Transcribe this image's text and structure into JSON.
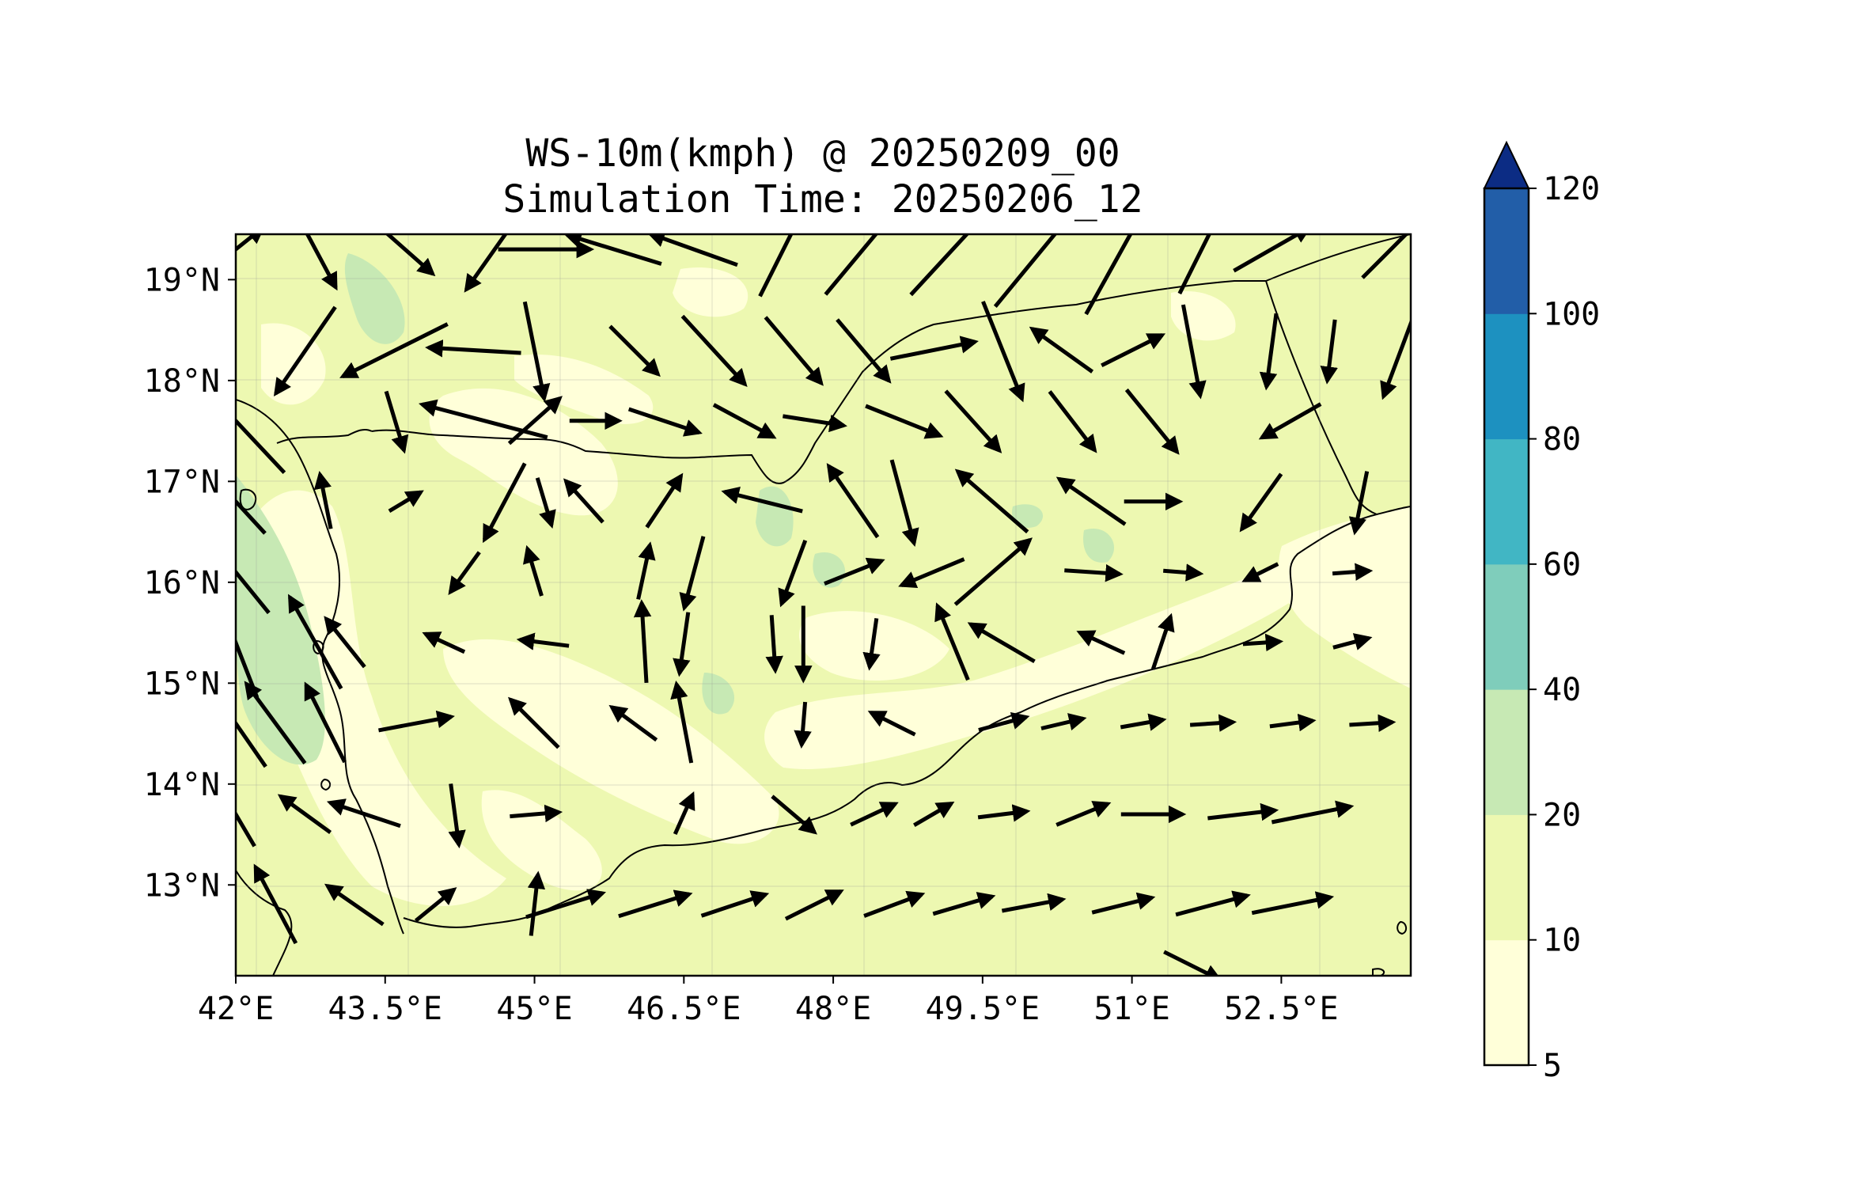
{
  "title_line1": "WS-10m(kmph) @ 20250209_00",
  "title_line2": "Simulation Time: 20250206_12",
  "map": {
    "lon_range": [
      42.0,
      53.8
    ],
    "lat_range": [
      12.1,
      19.45
    ],
    "lon_ticks": [
      {
        "v": 42.0,
        "label": "42°E"
      },
      {
        "v": 43.5,
        "label": "43.5°E"
      },
      {
        "v": 45.0,
        "label": "45°E"
      },
      {
        "v": 46.5,
        "label": "46.5°E"
      },
      {
        "v": 48.0,
        "label": "48°E"
      },
      {
        "v": 49.5,
        "label": "49.5°E"
      },
      {
        "v": 51.0,
        "label": "51°E"
      },
      {
        "v": 52.5,
        "label": "52.5°E"
      }
    ],
    "lat_ticks": [
      {
        "v": 19,
        "label": "19°N"
      },
      {
        "v": 18,
        "label": "18°N"
      },
      {
        "v": 17,
        "label": "17°N"
      },
      {
        "v": 16,
        "label": "16°N"
      },
      {
        "v": 15,
        "label": "15°N"
      },
      {
        "v": 14,
        "label": "14°N"
      },
      {
        "v": 13,
        "label": "13°N"
      }
    ]
  },
  "colorbar": {
    "levels": [
      {
        "label": "5"
      },
      {
        "label": "10"
      },
      {
        "label": "20"
      },
      {
        "label": "40"
      },
      {
        "label": "60"
      },
      {
        "label": "80"
      },
      {
        "label": "100"
      },
      {
        "label": "120"
      }
    ],
    "colors": [
      "#ffffd9",
      "#edf8b1",
      "#c7e9b4",
      "#7fcdbb",
      "#41b6c4",
      "#1d91c0",
      "#225ea8",
      "#0c2c84"
    ],
    "extend": "max"
  },
  "colors": {
    "fill_low": "#ffffd9",
    "fill_mid": "#edf8b1",
    "fill_high": "#c7e9b4",
    "arrow": "#000000",
    "coast": "#000000"
  },
  "wind_field": {
    "units": "data (lon/lat)",
    "rows": [
      {
        "lat": 19.3,
        "vectors": [
          [
            42.0,
            1.1,
            1.0,
            0.8
          ],
          [
            42.8,
            1.4,
            0.8,
            -1.5
          ],
          [
            43.7,
            1.2,
            1.7,
            -1.5
          ],
          [
            44.6,
            1.6,
            -1.2,
            -1.7
          ],
          [
            45.1,
            1.5,
            0.6,
            -0.0
          ],
          [
            45.8,
            1.6,
            -1.3,
            0.4
          ],
          [
            46.6,
            1.5,
            -1.4,
            0.5
          ],
          [
            47.5,
            1.7,
            0.7,
            1.4
          ],
          [
            48.3,
            1.9,
            1.0,
            1.2
          ],
          [
            49.2,
            2.0,
            1.2,
            1.3
          ],
          [
            50.1,
            2.4,
            1.4,
            1.7
          ],
          [
            50.9,
            2.4,
            1.0,
            1.8
          ],
          [
            51.7,
            1.6,
            0.8,
            1.6
          ],
          [
            52.4,
            1.4,
            1.4,
            0.8
          ],
          [
            53.6,
            1.3,
            1.0,
            1.0
          ]
        ]
      },
      {
        "lat": 18.3,
        "vectors": [
          [
            42.7,
            1.7,
            -1.1,
            -1.6
          ],
          [
            43.6,
            1.9,
            -1.6,
            -0.8
          ],
          [
            44.4,
            1.5,
            -1.7,
            0.1
          ],
          [
            45.0,
            1.6,
            0.3,
            -1.5
          ],
          [
            46.0,
            1.1,
            0.7,
            -0.7
          ],
          [
            46.8,
            1.5,
            1.1,
            -1.2
          ],
          [
            47.6,
            1.4,
            1.1,
            -1.3
          ],
          [
            48.3,
            1.3,
            1.1,
            -1.3
          ],
          [
            49.0,
            1.4,
            1.0,
            0.2
          ],
          [
            49.7,
            1.7,
            0.6,
            -1.5
          ],
          [
            50.3,
            1.2,
            -0.7,
            0.5
          ],
          [
            51.0,
            1.1,
            0.8,
            0.4
          ],
          [
            51.6,
            1.5,
            0.3,
            -1.6
          ],
          [
            52.4,
            1.2,
            -0.2,
            -1.5
          ],
          [
            53.0,
            1.0,
            -0.2,
            -1.6
          ],
          [
            53.7,
            1.6,
            -0.6,
            -1.6
          ]
        ]
      },
      {
        "lat": 17.6,
        "vectors": [
          [
            42.0,
            2.3,
            -1.5,
            1.6
          ],
          [
            43.6,
            1.0,
            0.3,
            -1.0
          ],
          [
            44.5,
            2.1,
            -1.9,
            0.5
          ],
          [
            45.0,
            1.1,
            0.9,
            0.8
          ],
          [
            45.6,
            0.8,
            1.2,
            -0.0
          ],
          [
            46.3,
            1.2,
            1.2,
            -0.4
          ],
          [
            47.1,
            1.1,
            1.3,
            -0.7
          ],
          [
            47.8,
            1.0,
            1.3,
            -0.2
          ],
          [
            48.7,
            1.3,
            1.5,
            -0.6
          ],
          [
            49.4,
            1.3,
            0.9,
            -1.0
          ],
          [
            50.4,
            1.2,
            1.0,
            -1.3
          ],
          [
            51.2,
            1.3,
            1.3,
            -1.6
          ],
          [
            52.6,
            1.1,
            -1.4,
            -0.8
          ]
        ]
      },
      {
        "lat": 16.8,
        "vectors": [
          [
            42.0,
            1.4,
            -1.2,
            1.3
          ],
          [
            42.9,
            0.9,
            -0.3,
            1.5
          ],
          [
            43.7,
            0.6,
            1.0,
            0.6
          ],
          [
            44.7,
            1.4,
            -0.9,
            -1.7
          ],
          [
            45.1,
            0.8,
            0.3,
            -1.0
          ],
          [
            45.5,
            0.9,
            -0.9,
            1.0
          ],
          [
            46.3,
            1.0,
            0.8,
            1.2
          ],
          [
            47.3,
            1.3,
            -1.6,
            0.4
          ],
          [
            48.2,
            1.4,
            -1.1,
            1.6
          ],
          [
            48.7,
            1.4,
            0.4,
            -1.5
          ],
          [
            49.6,
            1.5,
            -1.5,
            1.3
          ],
          [
            50.6,
            1.3,
            -1.6,
            1.1
          ],
          [
            51.2,
            0.9,
            1.4,
            0.0
          ],
          [
            52.3,
            1.1,
            -1.0,
            -1.4
          ],
          [
            53.3,
            1.0,
            -0.3,
            -1.5
          ]
        ]
      },
      {
        "lat": 16.1,
        "vectors": [
          [
            42.0,
            1.7,
            -1.3,
            1.6
          ],
          [
            44.3,
            0.8,
            -0.8,
            -1.1
          ],
          [
            45.0,
            0.8,
            -0.3,
            1.0
          ],
          [
            46.1,
            0.9,
            0.3,
            1.4
          ],
          [
            46.6,
            1.2,
            -0.4,
            -1.5
          ],
          [
            47.6,
            1.1,
            -0.6,
            -1.6
          ],
          [
            48.2,
            1.0,
            1.5,
            0.6
          ],
          [
            49.0,
            1.1,
            -1.2,
            -0.5
          ],
          [
            49.6,
            1.6,
            1.5,
            1.3
          ],
          [
            50.6,
            0.9,
            1.5,
            -0.1
          ],
          [
            51.5,
            0.6,
            1.3,
            -0.1
          ],
          [
            52.3,
            0.6,
            -1.0,
            -0.5
          ],
          [
            53.2,
            0.6,
            1.4,
            0.1
          ]
        ]
      },
      {
        "lat": 15.4,
        "vectors": [
          [
            42.0,
            1.9,
            -0.7,
            1.8
          ],
          [
            42.8,
            1.7,
            -0.9,
            1.6
          ],
          [
            43.1,
            1.0,
            -0.8,
            1.0
          ],
          [
            44.1,
            0.7,
            -1.3,
            0.6
          ],
          [
            45.1,
            0.8,
            -1.6,
            0.2
          ],
          [
            46.1,
            1.3,
            -0.1,
            1.7
          ],
          [
            46.5,
            1.0,
            -0.2,
            -1.4
          ],
          [
            47.4,
            0.9,
            0.1,
            -1.5
          ],
          [
            47.7,
            1.2,
            0.0,
            -1.6
          ],
          [
            48.4,
            0.8,
            -0.2,
            -1.4
          ],
          [
            49.2,
            1.3,
            -0.7,
            1.7
          ],
          [
            49.7,
            1.2,
            -1.2,
            0.7
          ],
          [
            50.7,
            0.8,
            -1.3,
            0.6
          ],
          [
            51.3,
            0.9,
            0.3,
            0.9
          ],
          [
            52.3,
            0.6,
            1.5,
            0.1
          ],
          [
            53.2,
            0.6,
            1.5,
            0.4
          ]
        ]
      },
      {
        "lat": 14.6,
        "vectors": [
          [
            42.0,
            1.7,
            -0.9,
            1.3
          ],
          [
            42.4,
            1.6,
            -1.4,
            1.9
          ],
          [
            42.9,
            1.4,
            -0.8,
            1.6
          ],
          [
            43.8,
            1.2,
            1.6,
            0.3
          ],
          [
            45.0,
            1.1,
            -0.9,
            0.9
          ],
          [
            46.0,
            0.9,
            -1.5,
            1.1
          ],
          [
            46.5,
            1.3,
            -0.3,
            1.6
          ],
          [
            47.7,
            0.7,
            -0.1,
            -1.2
          ],
          [
            48.6,
            0.8,
            -1.0,
            0.5
          ],
          [
            49.7,
            0.8,
            1.1,
            0.3
          ],
          [
            50.3,
            0.7,
            1.7,
            0.4
          ],
          [
            51.1,
            0.7,
            1.7,
            0.3
          ],
          [
            51.8,
            0.7,
            1.5,
            0.1
          ],
          [
            52.6,
            0.7,
            1.5,
            0.2
          ],
          [
            53.4,
            0.7,
            1.6,
            0.1
          ]
        ]
      },
      {
        "lat": 13.7,
        "vectors": [
          [
            42.0,
            1.2,
            -1.0,
            1.7
          ],
          [
            42.7,
            1.0,
            -1.1,
            0.8
          ],
          [
            43.3,
            1.2,
            -1.5,
            0.5
          ],
          [
            44.2,
            1.0,
            0.2,
            -1.5
          ],
          [
            45.0,
            0.8,
            1.2,
            0.1
          ],
          [
            46.5,
            0.7,
            0.4,
            0.9
          ],
          [
            47.6,
            0.9,
            1.3,
            -1.1
          ],
          [
            48.4,
            0.8,
            1.7,
            0.8
          ],
          [
            49.0,
            0.7,
            1.2,
            0.7
          ],
          [
            49.7,
            0.8,
            1.6,
            0.2
          ],
          [
            50.5,
            0.9,
            1.7,
            0.7
          ],
          [
            51.2,
            1.0,
            1.6,
            0.0
          ],
          [
            52.1,
            1.1,
            1.7,
            0.2
          ],
          [
            52.8,
            1.3,
            1.5,
            0.3
          ]
        ]
      },
      {
        "lat": 12.8,
        "vectors": [
          [
            42.4,
            1.4,
            -0.9,
            1.7
          ],
          [
            43.2,
            1.1,
            -1.3,
            0.9
          ],
          [
            44.0,
            0.8,
            1.1,
            0.9
          ],
          [
            45.0,
            1.0,
            0.2,
            1.8
          ],
          [
            45.3,
            1.3,
            1.6,
            0.5
          ],
          [
            46.2,
            1.2,
            1.6,
            0.5
          ],
          [
            47.0,
            1.1,
            1.8,
            0.6
          ],
          [
            47.8,
            1.0,
            1.6,
            0.8
          ],
          [
            48.6,
            1.0,
            1.6,
            0.6
          ],
          [
            49.3,
            1.0,
            1.7,
            0.5
          ],
          [
            50.0,
            1.0,
            1.6,
            0.3
          ],
          [
            50.9,
            1.0,
            1.6,
            0.4
          ],
          [
            51.8,
            1.2,
            1.5,
            0.4
          ],
          [
            52.6,
            1.3,
            1.5,
            0.3
          ]
        ]
      },
      {
        "lat": 12.2,
        "vectors": [
          [
            51.6,
            1.0,
            1.0,
            -0.5
          ]
        ]
      }
    ]
  }
}
